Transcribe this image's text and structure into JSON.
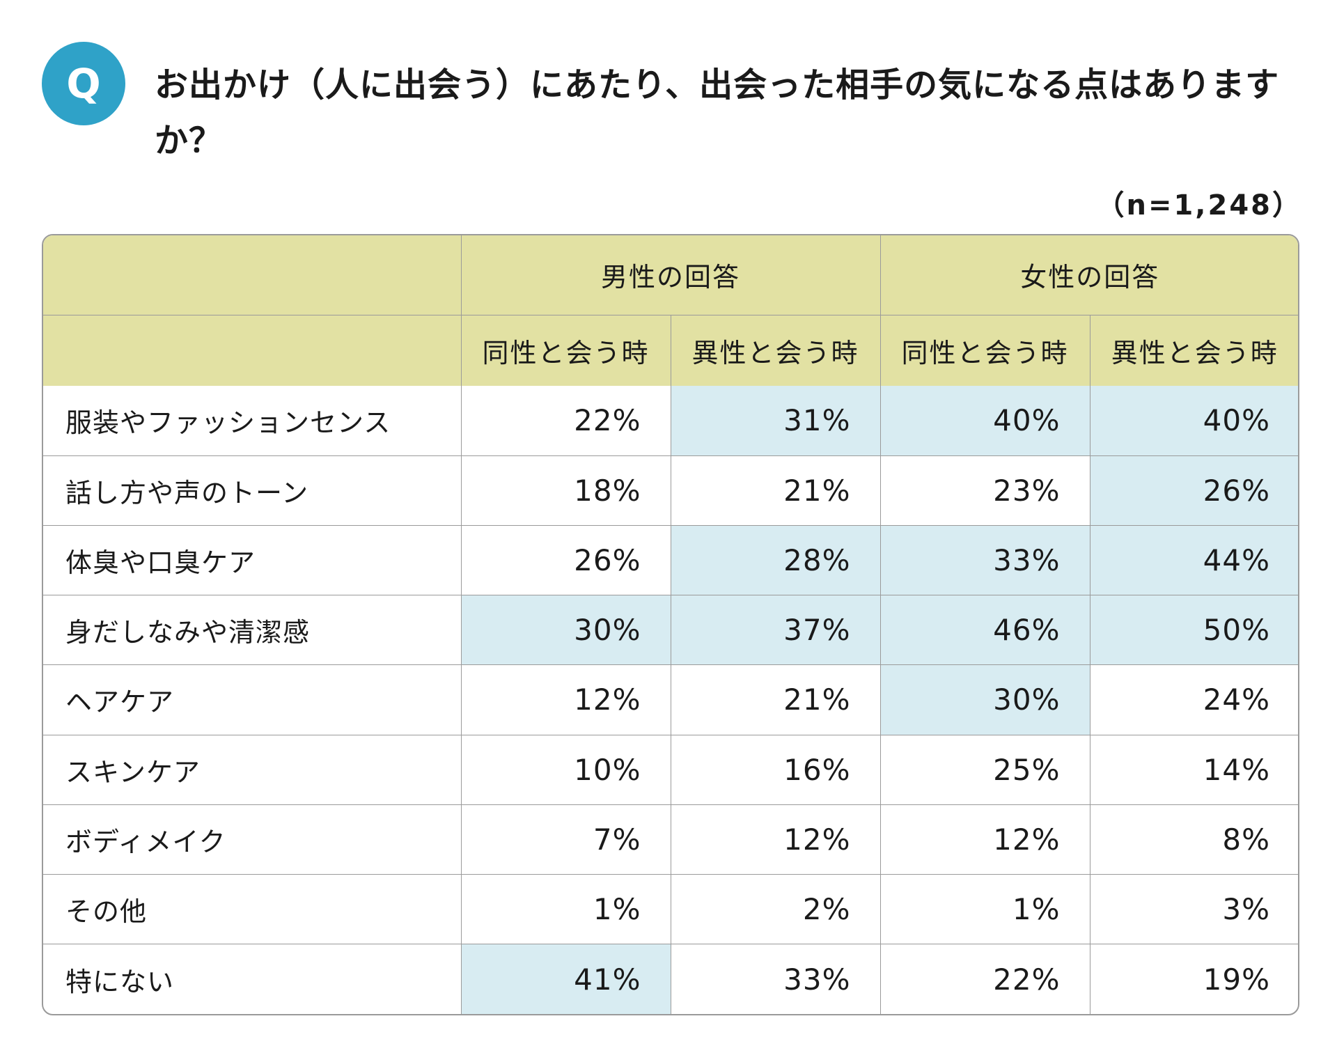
{
  "question": {
    "badge": "Q",
    "text": "お出かけ（人に出会う）にあたり、出会った相手の気になる点はありますか？"
  },
  "sample_size": "（n=1,248）",
  "colors": {
    "badge": "#2fa2c8",
    "header_bg": "#e2e1a3",
    "highlight_bg": "#d8ecf2",
    "border": "#9a9a9a"
  },
  "chart_data": {
    "type": "table",
    "groups": [
      "男性の回答",
      "女性の回答"
    ],
    "columns": [
      "同性と会う時",
      "異性と会う時",
      "同性と会う時",
      "異性と会う時"
    ],
    "rows": [
      {
        "label": "服装やファッションセンス",
        "values": [
          "22%",
          "31%",
          "40%",
          "40%"
        ],
        "highlight": [
          false,
          true,
          true,
          true
        ]
      },
      {
        "label": "話し方や声のトーン",
        "values": [
          "18%",
          "21%",
          "23%",
          "26%"
        ],
        "highlight": [
          false,
          false,
          false,
          true
        ]
      },
      {
        "label": "体臭や口臭ケア",
        "values": [
          "26%",
          "28%",
          "33%",
          "44%"
        ],
        "highlight": [
          false,
          true,
          true,
          true
        ]
      },
      {
        "label": "身だしなみや清潔感",
        "values": [
          "30%",
          "37%",
          "46%",
          "50%"
        ],
        "highlight": [
          true,
          true,
          true,
          true
        ]
      },
      {
        "label": "ヘアケア",
        "values": [
          "12%",
          "21%",
          "30%",
          "24%"
        ],
        "highlight": [
          false,
          false,
          true,
          false
        ]
      },
      {
        "label": "スキンケア",
        "values": [
          "10%",
          "16%",
          "25%",
          "14%"
        ],
        "highlight": [
          false,
          false,
          false,
          false
        ]
      },
      {
        "label": "ボディメイク",
        "values": [
          "7%",
          "12%",
          "12%",
          "8%"
        ],
        "highlight": [
          false,
          false,
          false,
          false
        ]
      },
      {
        "label": "その他",
        "values": [
          "1%",
          "2%",
          "1%",
          "3%"
        ],
        "highlight": [
          false,
          false,
          false,
          false
        ]
      },
      {
        "label": "特にない",
        "values": [
          "41%",
          "33%",
          "22%",
          "19%"
        ],
        "highlight": [
          true,
          false,
          false,
          false
        ]
      }
    ]
  }
}
